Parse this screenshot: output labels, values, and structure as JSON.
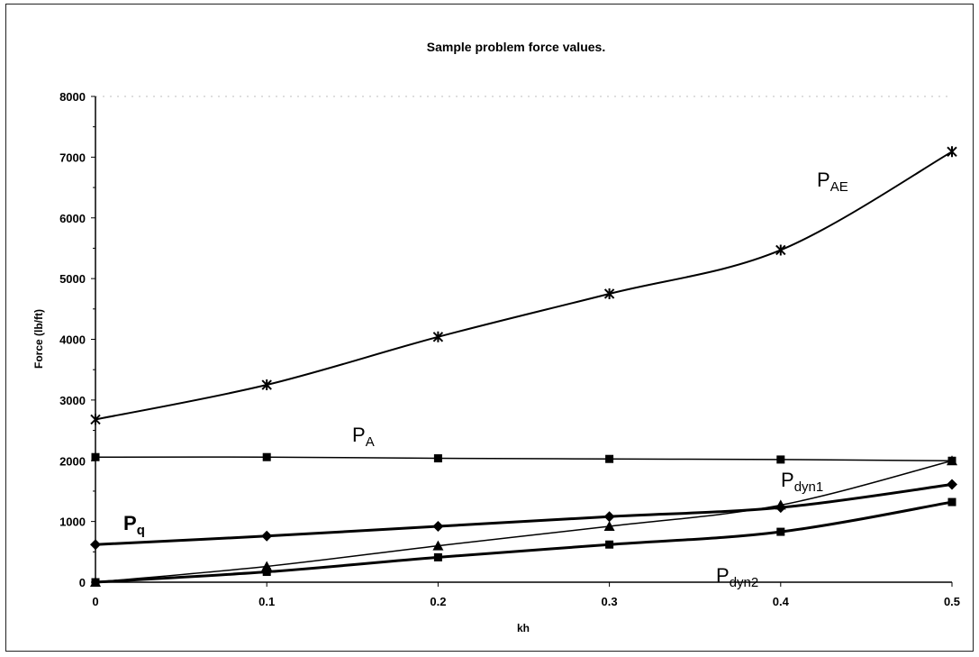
{
  "chart_data": {
    "type": "line",
    "title": "Sample problem force values.",
    "xlabel": "kh",
    "ylabel": "Force (lb/ft)",
    "xlim": [
      0,
      0.5
    ],
    "ylim": [
      0,
      8000
    ],
    "x_ticks": [
      0,
      0.1,
      0.2,
      0.3,
      0.4,
      0.5
    ],
    "x_tick_labels": [
      "0",
      "0.1",
      "0.2",
      "0.3",
      "0.4",
      "0.5"
    ],
    "y_ticks": [
      0,
      1000,
      2000,
      3000,
      4000,
      5000,
      6000,
      7000,
      8000
    ],
    "y_tick_labels": [
      "0",
      "1000",
      "2000",
      "3000",
      "4000",
      "5000",
      "6000",
      "7000",
      "8000"
    ],
    "x": [
      0,
      0.1,
      0.2,
      0.3,
      0.4,
      0.5
    ],
    "grid": "faint horizontal at top",
    "legend": "inline labels",
    "series": [
      {
        "id": "pae",
        "label_main": "P",
        "label_sub": "AE",
        "marker": "star",
        "stroke_width": 2,
        "values": [
          2680,
          3250,
          4040,
          4750,
          5470,
          7090
        ]
      },
      {
        "id": "pa",
        "label_main": "P",
        "label_sub": "A",
        "marker": "square",
        "stroke_width": 1.5,
        "values": [
          2060,
          2060,
          2040,
          2030,
          2020,
          2000
        ]
      },
      {
        "id": "pdyn1",
        "label_main": "P",
        "label_sub": "dyn1",
        "marker": "triangle",
        "stroke_width": 1.5,
        "values": [
          0,
          260,
          600,
          920,
          1270,
          2000
        ]
      },
      {
        "id": "pq",
        "label_main": "P",
        "label_sub": "q",
        "marker": "diamond",
        "stroke_width": 3,
        "values": [
          620,
          760,
          920,
          1080,
          1230,
          1610
        ]
      },
      {
        "id": "pdyn2",
        "label_main": "P",
        "label_sub": "dyn2",
        "marker": "square",
        "stroke_width": 3,
        "values": [
          0,
          170,
          410,
          620,
          830,
          1320
        ]
      }
    ]
  }
}
